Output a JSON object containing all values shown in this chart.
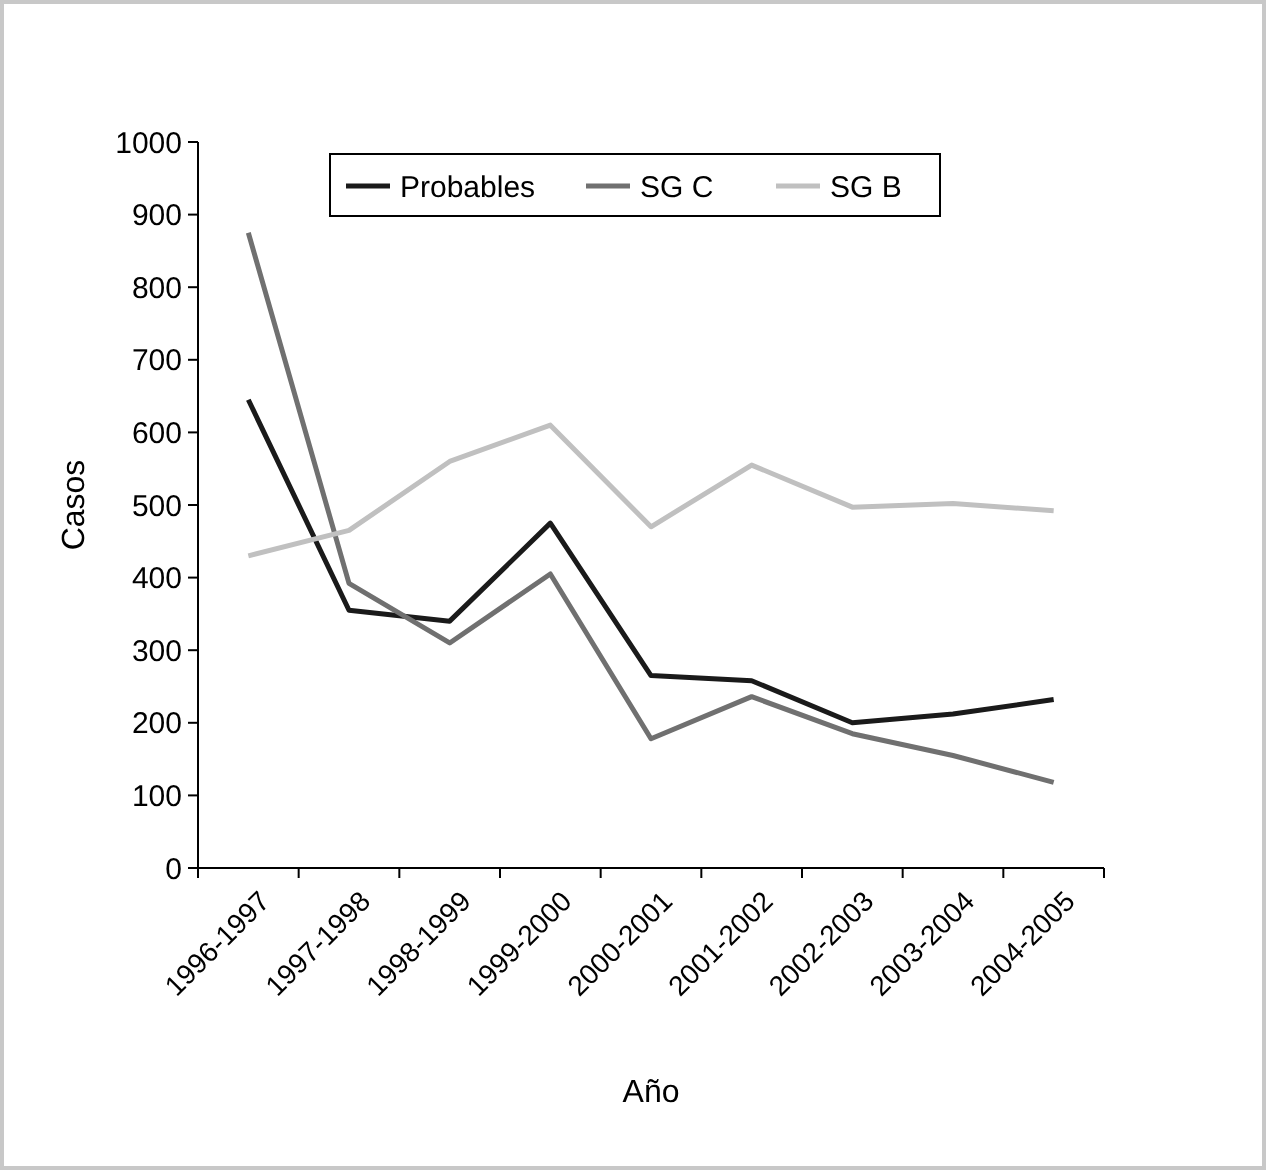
{
  "chart_data": {
    "type": "line",
    "xlabel": "Año",
    "ylabel": "Casos",
    "categories": [
      "1996-1997",
      "1997-1998",
      "1998-1999",
      "1999-2000",
      "2000-2001",
      "2001-2002",
      "2002-2003",
      "2003-2004",
      "2004-2005"
    ],
    "series": [
      {
        "name": "Probables",
        "color": "#1a1a1a",
        "values": [
          645,
          355,
          340,
          475,
          265,
          258,
          200,
          212,
          232
        ]
      },
      {
        "name": "SG C",
        "color": "#707070",
        "values": [
          875,
          392,
          310,
          405,
          178,
          236,
          185,
          155,
          118
        ]
      },
      {
        "name": "SG B",
        "color": "#c0c0c0",
        "values": [
          430,
          465,
          560,
          610,
          470,
          555,
          497,
          502,
          492
        ]
      }
    ],
    "ylim": [
      0,
      1000
    ],
    "yticks": [
      0,
      100,
      200,
      300,
      400,
      500,
      600,
      700,
      800,
      900,
      1000
    ],
    "grid": false,
    "legend": "top",
    "marker": "none",
    "line_style": "solid"
  }
}
